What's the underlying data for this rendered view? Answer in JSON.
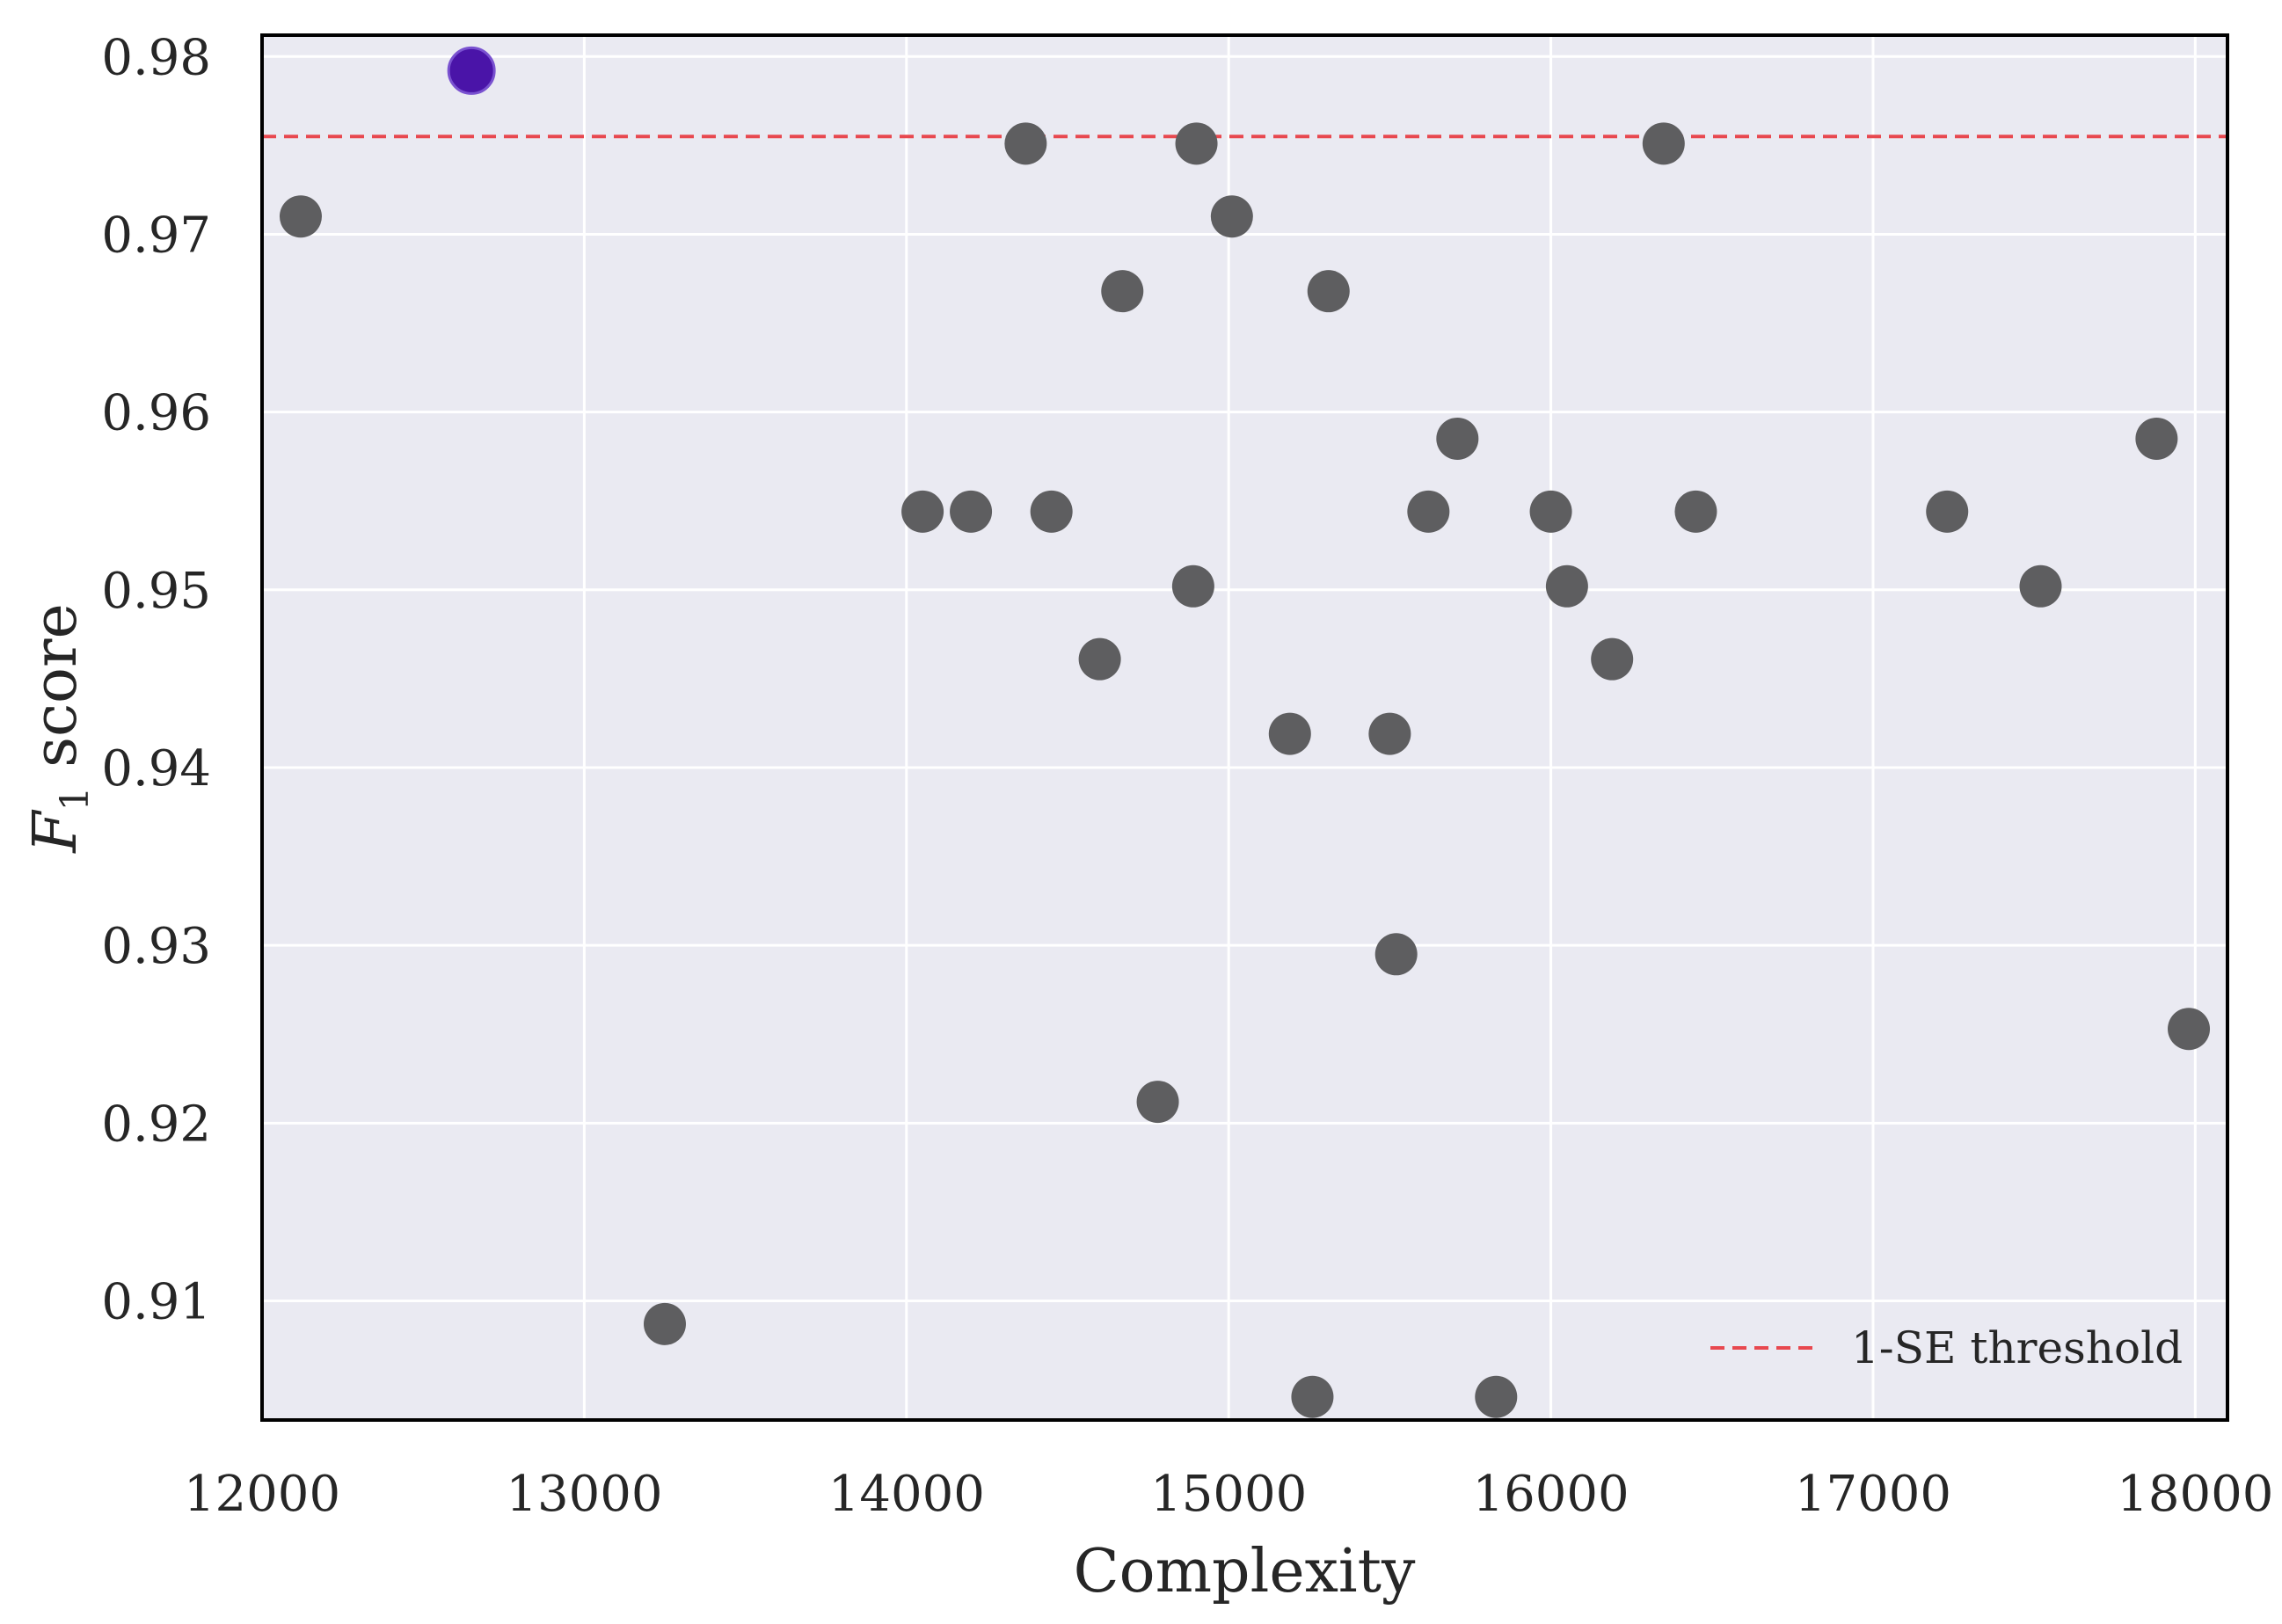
{
  "chart_data": {
    "type": "scatter",
    "xlabel": "Complexity",
    "ylabel_main": "F",
    "ylabel_sub": "1",
    "ylabel_rest": " score",
    "xlim": [
      12000,
      18100
    ],
    "ylim": [
      0.9033,
      0.9812
    ],
    "xticks": [
      12000,
      13000,
      14000,
      15000,
      16000,
      17000,
      18000
    ],
    "yticks": [
      0.91,
      0.92,
      0.93,
      0.94,
      0.95,
      0.96,
      0.97,
      0.98
    ],
    "ytick_labels": [
      "0.91",
      "0.92",
      "0.93",
      "0.94",
      "0.95",
      "0.96",
      "0.97",
      "0.98"
    ],
    "grid": true,
    "legend_position": "bottom-right",
    "threshold": {
      "name": "1-SE threshold",
      "y": 0.9755,
      "color": "#e8484f",
      "style": "dashed"
    },
    "selected_point": {
      "x": 12650,
      "y": 0.9792,
      "color": "#4a14a8"
    },
    "point_color": "#5e5e60",
    "points": [
      {
        "x": 12120,
        "y": 0.971
      },
      {
        "x": 13250,
        "y": 0.9087
      },
      {
        "x": 14050,
        "y": 0.9544
      },
      {
        "x": 14200,
        "y": 0.9544
      },
      {
        "x": 14370,
        "y": 0.9751
      },
      {
        "x": 14450,
        "y": 0.9544
      },
      {
        "x": 14600,
        "y": 0.9461
      },
      {
        "x": 14670,
        "y": 0.9668
      },
      {
        "x": 14780,
        "y": 0.9212
      },
      {
        "x": 14890,
        "y": 0.9502
      },
      {
        "x": 14900,
        "y": 0.9751
      },
      {
        "x": 15010,
        "y": 0.971
      },
      {
        "x": 15190,
        "y": 0.9419
      },
      {
        "x": 15260,
        "y": 0.9046
      },
      {
        "x": 15310,
        "y": 0.9668
      },
      {
        "x": 15500,
        "y": 0.9419
      },
      {
        "x": 15520,
        "y": 0.9295
      },
      {
        "x": 15620,
        "y": 0.9544
      },
      {
        "x": 15710,
        "y": 0.9585
      },
      {
        "x": 15830,
        "y": 0.9046
      },
      {
        "x": 16000,
        "y": 0.9544
      },
      {
        "x": 16050,
        "y": 0.9502
      },
      {
        "x": 16190,
        "y": 0.9461
      },
      {
        "x": 16350,
        "y": 0.9751
      },
      {
        "x": 16450,
        "y": 0.9544
      },
      {
        "x": 17230,
        "y": 0.9544
      },
      {
        "x": 17520,
        "y": 0.9502
      },
      {
        "x": 17880,
        "y": 0.9585
      },
      {
        "x": 17980,
        "y": 0.9253
      }
    ]
  }
}
